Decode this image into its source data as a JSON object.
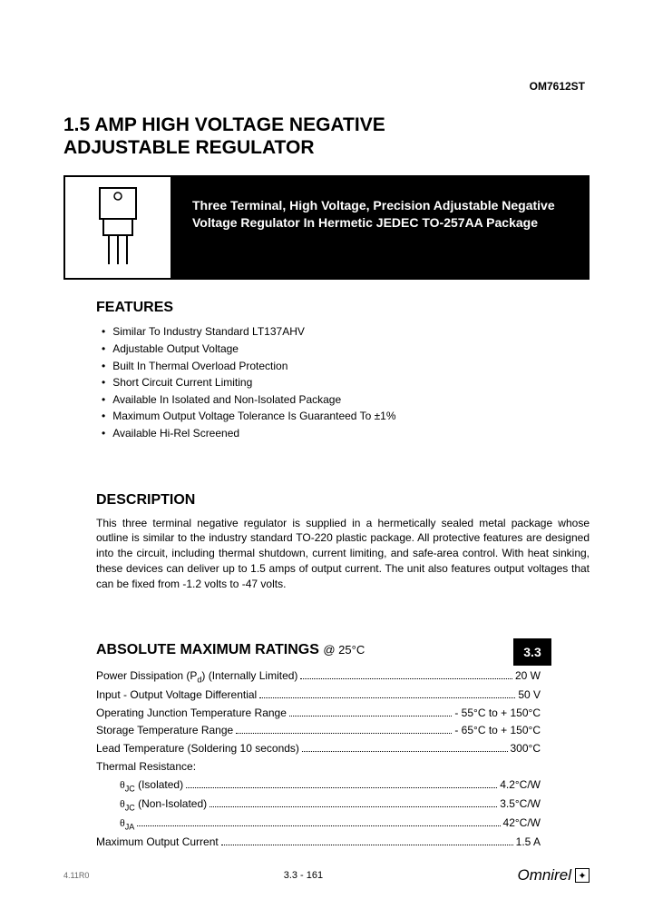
{
  "header": {
    "part_number": "OM7612ST",
    "title_line1": "1.5 AMP HIGH VOLTAGE NEGATIVE",
    "title_line2": "ADJUSTABLE REGULATOR"
  },
  "hero": {
    "subtitle": "Three Terminal, High Voltage, Precision Adjustable Negative Voltage Regulator In Hermetic JEDEC TO-257AA Package"
  },
  "features": {
    "heading": "FEATURES",
    "items": [
      "Similar To Industry Standard LT137AHV",
      "Adjustable Output Voltage",
      "Built In Thermal Overload Protection",
      "Short Circuit Current Limiting",
      "Available In Isolated and Non-Isolated Package",
      "Maximum Output Voltage Tolerance Is Guaranteed To ±1%",
      "Available Hi-Rel Screened"
    ]
  },
  "description": {
    "heading": "DESCRIPTION",
    "body": "This three terminal negative regulator is supplied in a hermetically sealed metal package whose outline is similar to the industry standard TO-220 plastic package. All protective features are designed into the circuit, including thermal shutdown, current limiting, and safe-area control. With heat sinking, these devices can deliver up to 1.5 amps of output current. The unit also features output voltages that can be fixed from -1.2 volts to -47 volts."
  },
  "ratings": {
    "heading": "ABSOLUTE MAXIMUM RATINGS",
    "condition": "@ 25°C",
    "badge": "3.3",
    "rows": [
      {
        "label": "Power Dissipation (P_d) (Internally Limited)",
        "value": "20 W",
        "indent": false
      },
      {
        "label": "Input - Output Voltage Differential",
        "value": "50 V",
        "indent": false
      },
      {
        "label": "Operating Junction Temperature Range",
        "value": "- 55°C to + 150°C",
        "indent": false
      },
      {
        "label": "Storage Temperature Range",
        "value": "- 65°C to + 150°C",
        "indent": false
      },
      {
        "label": "Lead Temperature (Soldering 10 seconds)",
        "value": "300°C",
        "indent": false
      },
      {
        "label": "Thermal Resistance:",
        "value": "",
        "indent": false
      },
      {
        "label": "θJC (Isolated)",
        "value": "4.2°C/W",
        "indent": true
      },
      {
        "label": "θJC (Non-Isolated)",
        "value": "3.5°C/W",
        "indent": true
      },
      {
        "label": "θJA",
        "value": "42°C/W",
        "indent": true
      },
      {
        "label": "Maximum Output Current",
        "value": "1.5 A",
        "indent": false
      }
    ]
  },
  "footer": {
    "revision": "4.11R0",
    "page": "3.3 - 161",
    "brand": "Omnirel"
  },
  "colors": {
    "text": "#000000",
    "inverse_bg": "#000000",
    "inverse_text": "#ffffff",
    "page_bg": "#ffffff"
  }
}
